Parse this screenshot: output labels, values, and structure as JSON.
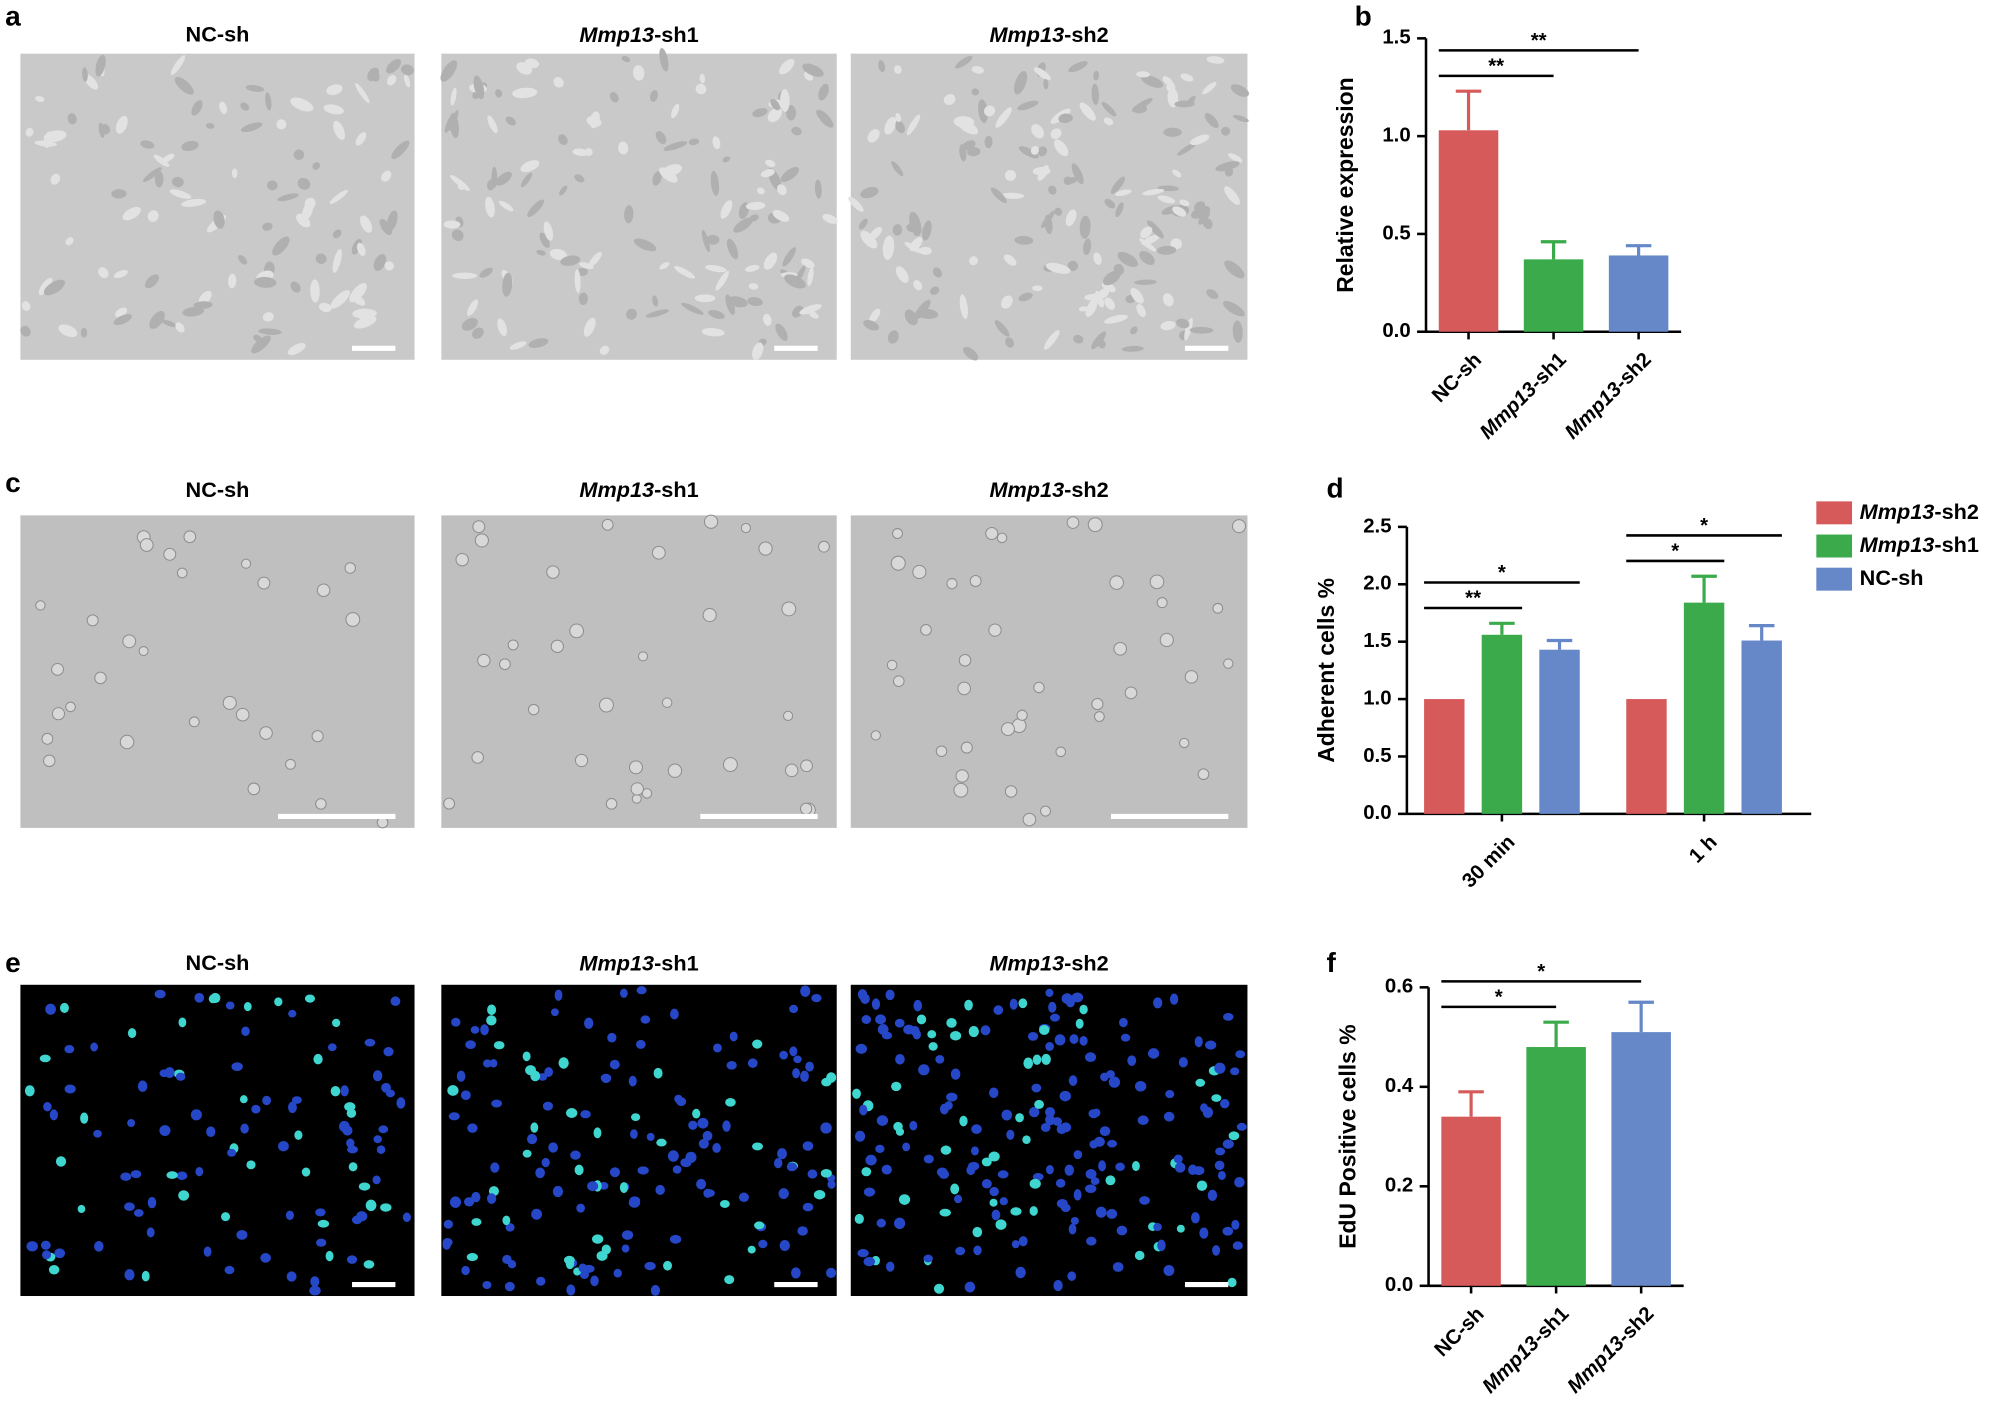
{
  "figure": {
    "panels": [
      {
        "letter": "a",
        "images": [
          "NC-sh",
          "Mmp13-sh1",
          "Mmp13-sh2"
        ]
      },
      {
        "letter": "c",
        "images": [
          "NC-sh",
          "Mmp13-sh1",
          "Mmp13-sh2"
        ]
      },
      {
        "letter": "e",
        "images": [
          "NC-sh",
          "Mmp13-sh1",
          "Mmp13-sh2"
        ]
      }
    ]
  },
  "chart_data": [
    {
      "type": "bar",
      "panel": "b",
      "ylabel": "Relative expression",
      "categories": [
        "NC-sh",
        "Mmp13-sh1",
        "Mmp13-sh2"
      ],
      "values": [
        1.03,
        0.37,
        0.39
      ],
      "errors": [
        0.2,
        0.09,
        0.05
      ],
      "colors": [
        "#d65a5a",
        "#3aaa4a",
        "#6688c8"
      ],
      "ylim": [
        0,
        1.5
      ],
      "yticks": [
        {
          "value": 0,
          "label": "0.0"
        },
        0.5,
        {
          "value": 1,
          "label": "1.0"
        },
        1.5
      ],
      "annotations": [
        {
          "text": "**",
          "pair": [
            "NC-sh",
            "Mmp13-sh1"
          ]
        },
        {
          "text": "**",
          "pair": [
            "NC-sh",
            "Mmp13-sh2"
          ]
        }
      ]
    },
    {
      "type": "grouped-bar",
      "panel": "d",
      "ylabel": "Adherent cells %",
      "categories": [
        "30 min",
        "1 h"
      ],
      "series": [
        {
          "name": "Mmp13-sh2",
          "color": "#d65a5a",
          "values": [
            1.0,
            1.0
          ],
          "errors": [
            null,
            null
          ]
        },
        {
          "name": "Mmp13-sh1",
          "color": "#3aaa4a",
          "values": [
            1.56,
            1.84
          ],
          "errors": [
            0.1,
            0.23
          ]
        },
        {
          "name": "NC-sh",
          "color": "#6688c8",
          "values": [
            1.43,
            1.51
          ],
          "errors": [
            0.08,
            0.13
          ]
        }
      ],
      "legend": "right",
      "ylim": [
        0,
        2.5
      ],
      "yticks": [
        {
          "value": 0,
          "label": "0.0"
        },
        0.5,
        {
          "value": 1,
          "label": "1.0"
        },
        1.5,
        {
          "value": 2,
          "label": "2.0"
        },
        2.5
      ],
      "annotations": [
        {
          "text": "**",
          "category": "30 min",
          "pair": [
            "Mmp13-sh2",
            "Mmp13-sh1"
          ]
        },
        {
          "text": "*",
          "category": "30 min",
          "pair": [
            "Mmp13-sh2",
            "NC-sh"
          ]
        },
        {
          "text": "*",
          "category": "1 h",
          "pair": [
            "Mmp13-sh2",
            "Mmp13-sh1"
          ]
        },
        {
          "text": "*",
          "category": "1 h",
          "pair": [
            "Mmp13-sh2",
            "NC-sh"
          ]
        }
      ]
    },
    {
      "type": "bar",
      "panel": "f",
      "ylabel": "EdU Positive cells %",
      "categories": [
        "NC-sh",
        "Mmp13-sh1",
        "Mmp13-sh2"
      ],
      "values": [
        0.34,
        0.48,
        0.51
      ],
      "errors": [
        0.05,
        0.05,
        0.06
      ],
      "colors": [
        "#d65a5a",
        "#3aaa4a",
        "#6688c8"
      ],
      "ylim": [
        0,
        0.6
      ],
      "yticks": [
        {
          "value": 0,
          "label": "0.0"
        },
        0.2,
        0.4,
        0.6
      ],
      "annotations": [
        {
          "text": "*",
          "pair": [
            "NC-sh",
            "Mmp13-sh1"
          ]
        },
        {
          "text": "*",
          "pair": [
            "NC-sh",
            "Mmp13-sh2"
          ]
        }
      ]
    }
  ]
}
